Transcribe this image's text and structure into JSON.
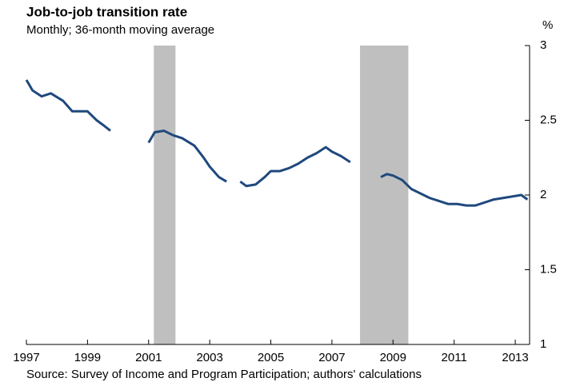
{
  "chart_data": {
    "type": "line",
    "title": "Job-to-job transition rate",
    "subtitle": "Monthly; 36-month moving average",
    "y_axis_label": "%",
    "source": "Source: Survey of Income and Program Participation; authors' calculations",
    "x": [
      1997.0,
      1997.2,
      1997.5,
      1997.8,
      1998.2,
      1998.5,
      1998.8,
      1999.0,
      1999.3,
      1999.5,
      1999.75,
      2000.4,
      2001.0,
      2001.2,
      2001.5,
      2001.8,
      2002.1,
      2002.5,
      2002.8,
      2003.0,
      2003.3,
      2003.55,
      2003.8,
      2004.0,
      2004.2,
      2004.5,
      2004.8,
      2005.0,
      2005.3,
      2005.6,
      2005.9,
      2006.2,
      2006.5,
      2006.8,
      2007.0,
      2007.3,
      2007.6,
      2008.0,
      2008.6,
      2008.8,
      2009.0,
      2009.3,
      2009.6,
      2009.9,
      2010.2,
      2010.5,
      2010.8,
      2011.1,
      2011.4,
      2011.7,
      2012.0,
      2012.3,
      2012.6,
      2012.9,
      2013.2,
      2013.4
    ],
    "series": [
      {
        "name": "Job-to-job transition rate",
        "color": "#1f497d",
        "values": [
          2.77,
          2.7,
          2.66,
          2.68,
          2.63,
          2.56,
          2.56,
          2.56,
          2.5,
          2.47,
          2.43,
          null,
          2.35,
          2.42,
          2.43,
          2.4,
          2.38,
          2.33,
          2.25,
          2.19,
          2.12,
          2.09,
          null,
          2.09,
          2.06,
          2.07,
          2.12,
          2.16,
          2.16,
          2.18,
          2.21,
          2.25,
          2.28,
          2.32,
          2.29,
          2.26,
          2.22,
          null,
          2.12,
          2.14,
          2.13,
          2.1,
          2.04,
          2.01,
          1.98,
          1.96,
          1.94,
          1.94,
          1.93,
          1.93,
          1.95,
          1.97,
          1.98,
          1.99,
          2.0,
          1.97
        ]
      }
    ],
    "recessions": [
      [
        2001.17,
        2001.88
      ],
      [
        2007.92,
        2009.5
      ]
    ],
    "recession_color": "#bfbfbf",
    "xlim": [
      1997,
      2013.47
    ],
    "xticks": [
      1997,
      1999,
      2001,
      2003,
      2005,
      2007,
      2009,
      2011,
      2013
    ],
    "ylim": [
      1,
      3
    ],
    "yticks": [
      1,
      1.5,
      2,
      2.5,
      3
    ],
    "grid": false
  }
}
